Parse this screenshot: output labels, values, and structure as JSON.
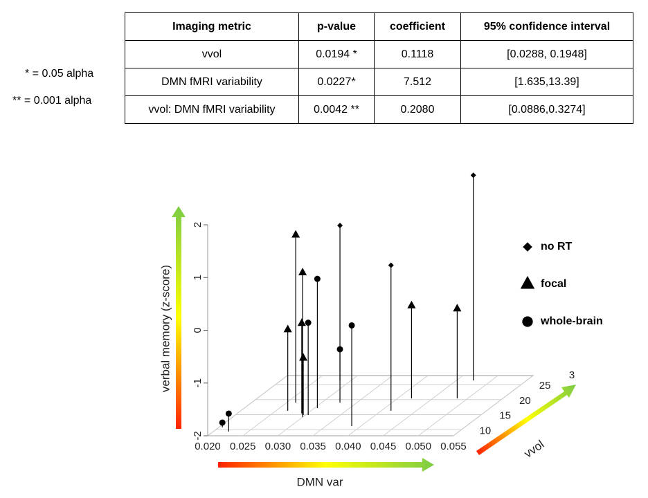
{
  "notes": [
    "* = 0.05 alpha",
    "** = 0.001 alpha"
  ],
  "table": {
    "header": [
      "Imaging metric",
      "p-value",
      "coefficient",
      "95% confidence interval"
    ],
    "rows": [
      [
        "vvol",
        "0.0194 *",
        "0.1118",
        "[0.0288, 0.1948]"
      ],
      [
        "DMN fMRI variability",
        "0.0227*",
        "7.512",
        "[1.635,13.39]"
      ],
      [
        "vvol: DMN fMRI variability",
        "0.0042 **",
        "0.2080",
        "[0.0886,0.3274]"
      ]
    ]
  },
  "chart_data": {
    "type": "scatter3d",
    "x_label": "DMN var",
    "y_label": "vvol",
    "z_label": "verbal memory (z-score)",
    "y_arrow_label": "3",
    "xlim": [
      0.02,
      0.055
    ],
    "xticks": [
      {
        "value": 0.02,
        "label": "0.020"
      },
      {
        "value": 0.025,
        "label": "0.025"
      },
      {
        "value": 0.03,
        "label": "0.030"
      },
      {
        "value": 0.035,
        "label": "0.035"
      },
      {
        "value": 0.04,
        "label": "0.040"
      },
      {
        "value": 0.045,
        "label": "0.045"
      },
      {
        "value": 0.05,
        "label": "0.050"
      },
      {
        "value": 0.055,
        "label": "0.055"
      }
    ],
    "ylim": [
      8,
      28
    ],
    "yticks": [
      10,
      15,
      20,
      25
    ],
    "zlim": [
      -2,
      2
    ],
    "zticks": [
      -2,
      -1,
      0,
      1,
      2
    ],
    "grid": true,
    "series": [
      {
        "name": "no RT",
        "marker": "diamond",
        "color": "#000000",
        "x": [
          0.0326,
          0.0414,
          0.0474
        ],
        "y": [
          19,
          16.3,
          26.4
        ],
        "z": [
          1.36,
          0.76,
          1.89
        ]
      },
      {
        "name": "focal",
        "marker": "triangle",
        "color": "#000000",
        "x": [
          0.0263,
          0.0267,
          0.03,
          0.0292,
          0.0297,
          0.042,
          0.0485
        ],
        "y": [
          19,
          16.3,
          14.2,
          15.4,
          14.9,
          20.4,
          20.4
        ],
        "z": [
          1.18,
          -0.46,
          0.74,
          -0.29,
          -0.92,
          -0.24,
          -0.3
        ]
      },
      {
        "name": "whole-brain",
        "marker": "circle",
        "color": "#000000",
        "x": [
          0.0205,
          0.0222,
          0.0304,
          0.0304,
          0.0284,
          0.0387
        ],
        "y": [
          10.8,
          9.4,
          14.9,
          17.2,
          26.4,
          11.2
        ],
        "z": [
          -1.91,
          -1.66,
          -0.25,
          0.45,
          -1.41,
          -0.09
        ]
      }
    ]
  }
}
